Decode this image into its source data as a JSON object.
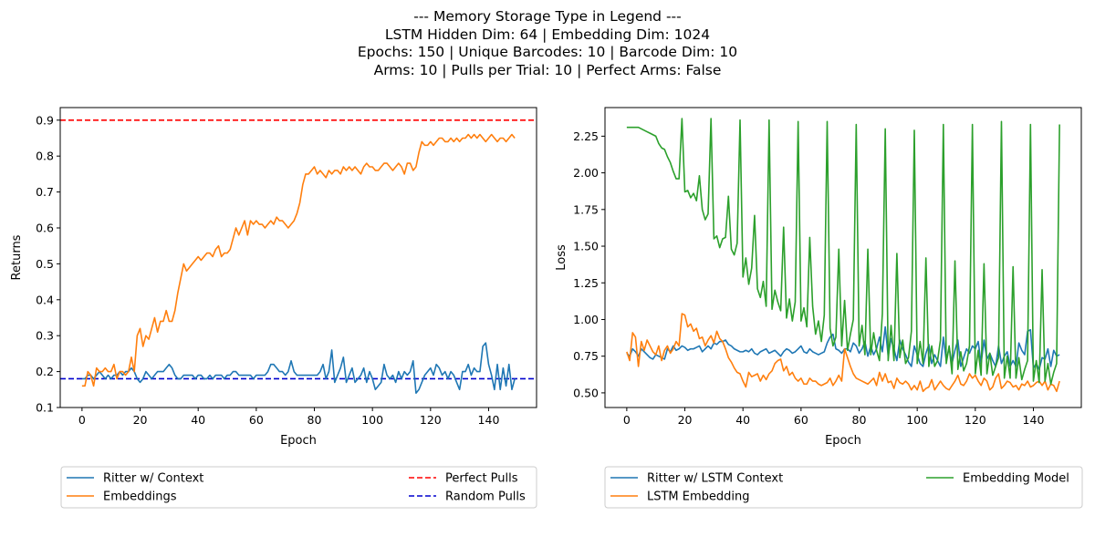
{
  "suptitle": [
    "--- Memory Storage Type in Legend ---",
    "LSTM Hidden Dim: 64 | Embedding Dim: 1024",
    "Epochs: 150 | Unique Barcodes: 10 | Barcode Dim: 10",
    "Arms: 10 | Pulls per Trial: 10 | Perfect Arms: False"
  ],
  "chart_data": [
    {
      "type": "line",
      "xlabel": "Epoch",
      "ylabel": "Returns",
      "xlim": [
        -7.5,
        156.5
      ],
      "ylim": [
        0.1,
        0.935
      ],
      "xticks": [
        0,
        20,
        40,
        60,
        80,
        100,
        120,
        140
      ],
      "xtick_labels": [
        "0",
        "20",
        "40",
        "60",
        "80",
        "100",
        "120",
        "140"
      ],
      "yticks": [
        0.1,
        0.2,
        0.3,
        0.4,
        0.5,
        0.6,
        0.7,
        0.8,
        0.9
      ],
      "ytick_labels": [
        "0.1",
        "0.2",
        "0.3",
        "0.4",
        "0.5",
        "0.6",
        "0.7",
        "0.8",
        "0.9"
      ],
      "grid": false,
      "legend_placement": "below",
      "series": [
        {
          "name": "Ritter w/ Context",
          "color": "#1f77b4",
          "values": [
            0.18,
            0.18,
            0.19,
            0.19,
            0.18,
            0.19,
            0.2,
            0.19,
            0.18,
            0.19,
            0.18,
            0.19,
            0.19,
            0.2,
            0.19,
            0.2,
            0.2,
            0.21,
            0.2,
            0.18,
            0.17,
            0.18,
            0.2,
            0.19,
            0.18,
            0.19,
            0.2,
            0.2,
            0.2,
            0.21,
            0.22,
            0.21,
            0.19,
            0.18,
            0.18,
            0.19,
            0.19,
            0.19,
            0.19,
            0.18,
            0.19,
            0.19,
            0.18,
            0.18,
            0.19,
            0.18,
            0.19,
            0.19,
            0.19,
            0.18,
            0.19,
            0.19,
            0.2,
            0.2,
            0.19,
            0.19,
            0.19,
            0.19,
            0.19,
            0.18,
            0.19,
            0.19,
            0.19,
            0.19,
            0.2,
            0.22,
            0.22,
            0.21,
            0.2,
            0.2,
            0.19,
            0.2,
            0.23,
            0.2,
            0.19,
            0.19,
            0.19,
            0.19,
            0.19,
            0.19,
            0.19,
            0.19,
            0.2,
            0.22,
            0.18,
            0.2,
            0.26,
            0.17,
            0.19,
            0.21,
            0.24,
            0.17,
            0.19,
            0.21,
            0.17,
            0.18,
            0.19,
            0.21,
            0.17,
            0.2,
            0.18,
            0.15,
            0.16,
            0.17,
            0.22,
            0.19,
            0.18,
            0.19,
            0.17,
            0.2,
            0.18,
            0.2,
            0.19,
            0.2,
            0.23,
            0.14,
            0.15,
            0.17,
            0.19,
            0.2,
            0.21,
            0.19,
            0.22,
            0.21,
            0.19,
            0.2,
            0.18,
            0.2,
            0.19,
            0.17,
            0.15,
            0.2,
            0.2,
            0.22,
            0.19,
            0.21,
            0.2,
            0.2,
            0.27,
            0.28,
            0.22,
            0.19,
            0.15,
            0.22,
            0.15,
            0.21,
            0.16,
            0.22,
            0.15,
            0.18
          ],
          "point_color": "#1f77b4"
        },
        {
          "name": "Embeddings",
          "color": "#ff7f0e",
          "values": [
            0.16,
            0.16,
            0.2,
            0.19,
            0.16,
            0.21,
            0.2,
            0.2,
            0.21,
            0.2,
            0.2,
            0.22,
            0.18,
            0.2,
            0.2,
            0.19,
            0.2,
            0.24,
            0.2,
            0.3,
            0.32,
            0.27,
            0.3,
            0.29,
            0.32,
            0.35,
            0.31,
            0.34,
            0.34,
            0.37,
            0.34,
            0.34,
            0.37,
            0.42,
            0.46,
            0.5,
            0.48,
            0.49,
            0.5,
            0.51,
            0.52,
            0.51,
            0.52,
            0.53,
            0.53,
            0.52,
            0.54,
            0.55,
            0.52,
            0.53,
            0.53,
            0.54,
            0.57,
            0.6,
            0.58,
            0.6,
            0.62,
            0.58,
            0.62,
            0.61,
            0.62,
            0.61,
            0.61,
            0.6,
            0.61,
            0.62,
            0.61,
            0.63,
            0.62,
            0.62,
            0.61,
            0.6,
            0.61,
            0.62,
            0.64,
            0.67,
            0.72,
            0.75,
            0.75,
            0.76,
            0.77,
            0.75,
            0.76,
            0.75,
            0.74,
            0.76,
            0.75,
            0.76,
            0.76,
            0.75,
            0.77,
            0.76,
            0.77,
            0.76,
            0.77,
            0.76,
            0.75,
            0.77,
            0.78,
            0.77,
            0.77,
            0.76,
            0.76,
            0.77,
            0.78,
            0.78,
            0.77,
            0.76,
            0.77,
            0.78,
            0.77,
            0.75,
            0.78,
            0.78,
            0.76,
            0.77,
            0.81,
            0.84,
            0.83,
            0.83,
            0.84,
            0.83,
            0.84,
            0.85,
            0.85,
            0.84,
            0.84,
            0.85,
            0.84,
            0.85,
            0.84,
            0.85,
            0.85,
            0.86,
            0.85,
            0.86,
            0.85,
            0.86,
            0.85,
            0.84,
            0.85,
            0.86,
            0.85,
            0.84,
            0.85,
            0.85,
            0.84,
            0.85,
            0.86,
            0.85
          ]
        }
      ],
      "reference_lines": [
        {
          "name": "Perfect Pulls",
          "y": 0.9,
          "color": "#ff0000",
          "style": "dashed"
        },
        {
          "name": "Random Pulls",
          "y": 0.18,
          "color": "#0000cd",
          "style": "dashed"
        }
      ]
    },
    {
      "type": "line",
      "xlabel": "Epoch",
      "ylabel": "Loss",
      "xlim": [
        -7.5,
        156.5
      ],
      "ylim": [
        0.4,
        2.445
      ],
      "xticks": [
        0,
        20,
        40,
        60,
        80,
        100,
        120,
        140
      ],
      "xtick_labels": [
        "0",
        "20",
        "40",
        "60",
        "80",
        "100",
        "120",
        "140"
      ],
      "yticks": [
        0.5,
        0.75,
        1.0,
        1.25,
        1.5,
        1.75,
        2.0,
        2.25
      ],
      "ytick_labels": [
        "0.50",
        "0.75",
        "1.00",
        "1.25",
        "1.50",
        "1.75",
        "2.00",
        "2.25"
      ],
      "grid": false,
      "legend_placement": "below",
      "series": [
        {
          "name": "Ritter w/ LSTM Context",
          "color": "#1f77b4",
          "values": [
            0.77,
            0.75,
            0.8,
            0.78,
            0.75,
            0.8,
            0.78,
            0.76,
            0.74,
            0.73,
            0.76,
            0.75,
            0.74,
            0.73,
            0.8,
            0.78,
            0.82,
            0.79,
            0.8,
            0.82,
            0.81,
            0.79,
            0.8,
            0.8,
            0.81,
            0.82,
            0.78,
            0.8,
            0.82,
            0.8,
            0.84,
            0.83,
            0.85,
            0.85,
            0.86,
            0.83,
            0.82,
            0.8,
            0.79,
            0.78,
            0.78,
            0.79,
            0.78,
            0.8,
            0.77,
            0.76,
            0.78,
            0.79,
            0.8,
            0.77,
            0.78,
            0.79,
            0.77,
            0.75,
            0.78,
            0.8,
            0.79,
            0.77,
            0.78,
            0.8,
            0.82,
            0.78,
            0.77,
            0.8,
            0.78,
            0.77,
            0.76,
            0.77,
            0.78,
            0.84,
            0.88,
            0.9,
            0.8,
            0.79,
            0.77,
            0.8,
            0.8,
            0.78,
            0.84,
            0.82,
            0.77,
            0.8,
            0.85,
            0.75,
            0.82,
            0.76,
            0.8,
            0.88,
            0.78,
            0.95,
            0.75,
            0.87,
            0.8,
            0.72,
            0.86,
            0.8,
            0.76,
            0.71,
            0.68,
            0.82,
            0.76,
            0.7,
            0.68,
            0.77,
            0.83,
            0.7,
            0.76,
            0.72,
            0.68,
            0.88,
            0.72,
            0.81,
            0.7,
            0.79,
            0.86,
            0.68,
            0.74,
            0.8,
            0.77,
            0.82,
            0.8,
            0.85,
            0.7,
            0.86,
            0.73,
            0.77,
            0.72,
            0.68,
            0.82,
            0.7,
            0.75,
            0.78,
            0.68,
            0.72,
            0.68,
            0.84,
            0.79,
            0.76,
            0.92,
            0.93,
            0.67,
            0.7,
            0.66,
            0.74,
            0.73,
            0.8,
            0.68,
            0.79,
            0.75,
            0.76
          ],
          "point_color": "#1f77b4"
        },
        {
          "name": "LSTM Embedding",
          "color": "#ff7f0e",
          "values": [
            0.78,
            0.72,
            0.91,
            0.88,
            0.68,
            0.85,
            0.79,
            0.86,
            0.82,
            0.78,
            0.76,
            0.82,
            0.72,
            0.79,
            0.82,
            0.77,
            0.8,
            0.85,
            0.82,
            1.04,
            1.03,
            0.95,
            0.97,
            0.92,
            0.94,
            0.87,
            0.88,
            0.82,
            0.86,
            0.89,
            0.84,
            0.92,
            0.87,
            0.85,
            0.8,
            0.74,
            0.71,
            0.67,
            0.64,
            0.63,
            0.58,
            0.54,
            0.64,
            0.61,
            0.62,
            0.63,
            0.58,
            0.62,
            0.59,
            0.63,
            0.65,
            0.7,
            0.72,
            0.73,
            0.65,
            0.68,
            0.62,
            0.64,
            0.6,
            0.58,
            0.6,
            0.56,
            0.56,
            0.6,
            0.58,
            0.58,
            0.56,
            0.55,
            0.56,
            0.57,
            0.6,
            0.55,
            0.58,
            0.62,
            0.58,
            0.8,
            0.74,
            0.68,
            0.63,
            0.6,
            0.59,
            0.58,
            0.57,
            0.56,
            0.58,
            0.6,
            0.55,
            0.64,
            0.58,
            0.63,
            0.57,
            0.58,
            0.53,
            0.6,
            0.57,
            0.56,
            0.58,
            0.56,
            0.52,
            0.55,
            0.52,
            0.58,
            0.51,
            0.53,
            0.54,
            0.59,
            0.52,
            0.55,
            0.58,
            0.55,
            0.53,
            0.52,
            0.55,
            0.58,
            0.62,
            0.56,
            0.55,
            0.58,
            0.63,
            0.6,
            0.62,
            0.58,
            0.55,
            0.6,
            0.58,
            0.52,
            0.54,
            0.6,
            0.63,
            0.53,
            0.55,
            0.58,
            0.57,
            0.54,
            0.55,
            0.52,
            0.56,
            0.55,
            0.58,
            0.54,
            0.55,
            0.57,
            0.58,
            0.55,
            0.58,
            0.52,
            0.56,
            0.55,
            0.51,
            0.58
          ]
        },
        {
          "name": "Embedding Model",
          "color": "#2ca02c",
          "values": [
            2.31,
            2.31,
            2.31,
            2.31,
            2.31,
            2.3,
            2.29,
            2.28,
            2.27,
            2.26,
            2.25,
            2.2,
            2.17,
            2.16,
            2.11,
            2.07,
            2.01,
            1.96,
            1.96,
            2.37,
            1.87,
            1.88,
            1.83,
            1.86,
            1.81,
            1.98,
            1.75,
            1.68,
            1.72,
            2.37,
            1.55,
            1.57,
            1.49,
            1.55,
            1.56,
            1.84,
            1.48,
            1.44,
            1.52,
            2.36,
            1.29,
            1.42,
            1.24,
            1.35,
            1.71,
            1.21,
            1.15,
            1.26,
            1.09,
            2.36,
            1.07,
            1.2,
            1.12,
            1.06,
            1.63,
            1.01,
            1.14,
            0.99,
            1.12,
            2.35,
            0.99,
            1.08,
            0.95,
            1.56,
            1.09,
            0.9,
            0.99,
            0.85,
            1.03,
            2.35,
            0.94,
            0.82,
            0.88,
            1.48,
            0.82,
            1.13,
            0.79,
            0.9,
            1.0,
            2.33,
            0.82,
            0.96,
            0.76,
            1.48,
            0.76,
            0.91,
            0.79,
            0.72,
            1.04,
            2.3,
            0.72,
            0.96,
            0.72,
            1.45,
            0.74,
            0.86,
            0.7,
            0.74,
            0.92,
            2.29,
            0.7,
            0.85,
            0.7,
            1.42,
            0.68,
            0.82,
            0.68,
            0.72,
            0.86,
            2.33,
            0.7,
            0.82,
            0.63,
            1.4,
            0.66,
            0.78,
            0.65,
            0.7,
            0.82,
            2.33,
            0.63,
            0.79,
            0.62,
            1.38,
            0.63,
            0.77,
            0.62,
            0.68,
            0.74,
            2.35,
            0.6,
            0.75,
            0.6,
            1.36,
            0.6,
            0.74,
            0.59,
            0.66,
            0.72,
            2.33,
            0.58,
            0.72,
            0.57,
            1.34,
            0.58,
            0.7,
            0.56,
            0.64,
            0.7,
            2.33
          ]
        }
      ]
    }
  ]
}
